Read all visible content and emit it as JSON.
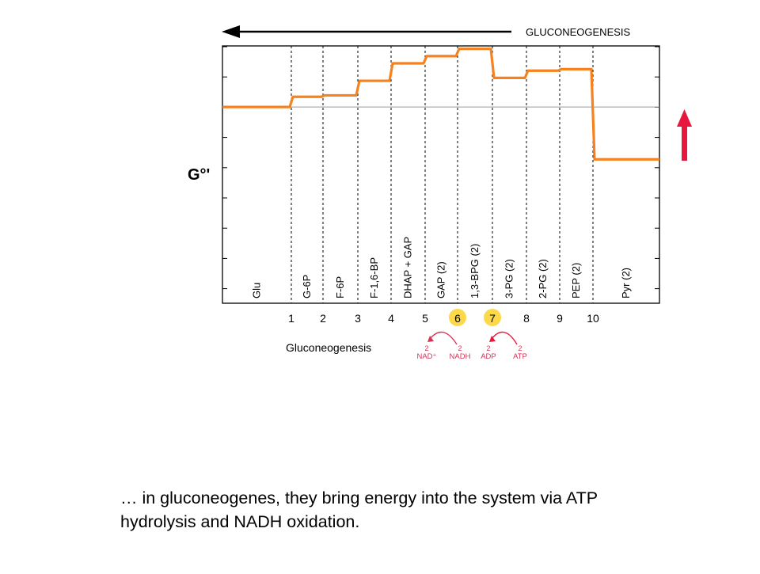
{
  "colors": {
    "energy_line": "#f5821f",
    "marker_circle": "#fbd94a",
    "cofactor_text": "#d63358",
    "arrow_red": "#e8173d",
    "direction_arrow": "#000000",
    "reference_line": "#999999"
  },
  "chart_data": {
    "type": "line",
    "title": "GLUCONEOGENESIS",
    "ylabel": "G°'",
    "xlabel": "Gluconeogenesis",
    "x_ticks": [
      "1",
      "2",
      "3",
      "4",
      "5",
      "6",
      "7",
      "8",
      "9",
      "10"
    ],
    "highlighted_steps": [
      "6",
      "7"
    ],
    "intermediates": [
      "Glu",
      "G-6P",
      "F-6P",
      "F-1,6-BP",
      "DHAP + GAP",
      "GAP (2)",
      "1,3-BPG (2)",
      "3-PG (2)",
      "2-PG (2)",
      "PEP (2)",
      "Pyr (2)"
    ],
    "values": [
      0,
      0.7,
      0.8,
      1.8,
      3.0,
      3.5,
      4.0,
      2.0,
      2.5,
      2.6,
      -3.6
    ],
    "reference_value": 0,
    "ylim": [
      -13.5,
      4.2
    ],
    "grid": false,
    "direction": "right-to-left",
    "cofactors": [
      {
        "step": "6",
        "left": "NAD⁺",
        "left_coef": "2",
        "right": "NADH",
        "right_coef": "2",
        "arrow_toward": "left"
      },
      {
        "step": "7",
        "left": "ADP",
        "left_coef": "2",
        "right": "ATP",
        "right_coef": "2",
        "arrow_toward": "left"
      }
    ]
  },
  "caption": {
    "line1": "… in gluconeogenes, they bring energy into the system via ATP",
    "line2": "hydrolysis and NADH oxidation."
  }
}
